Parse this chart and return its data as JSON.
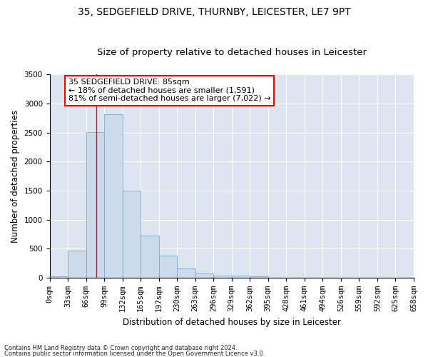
{
  "title1": "35, SEDGEFIELD DRIVE, THURNBY, LEICESTER, LE7 9PT",
  "title2": "Size of property relative to detached houses in Leicester",
  "xlabel": "Distribution of detached houses by size in Leicester",
  "ylabel": "Number of detached properties",
  "bar_color": "#ccdaeb",
  "bar_edge_color": "#7aaac8",
  "background_color": "#dde6f0",
  "bin_labels": [
    "0sqm",
    "33sqm",
    "66sqm",
    "99sqm",
    "132sqm",
    "165sqm",
    "197sqm",
    "230sqm",
    "263sqm",
    "296sqm",
    "329sqm",
    "362sqm",
    "395sqm",
    "428sqm",
    "461sqm",
    "494sqm",
    "526sqm",
    "559sqm",
    "592sqm",
    "625sqm",
    "658sqm"
  ],
  "bar_values": [
    20,
    470,
    2510,
    2820,
    1500,
    730,
    375,
    155,
    70,
    40,
    35,
    30,
    5,
    0,
    0,
    0,
    0,
    0,
    0,
    0
  ],
  "vline_x": 85,
  "annotation_text": "35 SEDGEFIELD DRIVE: 85sqm\n← 18% of detached houses are smaller (1,591)\n81% of semi-detached houses are larger (7,022) →",
  "annotation_box_color": "white",
  "annotation_box_edge_color": "red",
  "vline_color": "red",
  "ylim": [
    0,
    3500
  ],
  "bin_width": 33,
  "n_bars": 20,
  "footnote1": "Contains HM Land Registry data © Crown copyright and database right 2024.",
  "footnote2": "Contains public sector information licensed under the Open Government Licence v3.0.",
  "title1_fontsize": 10,
  "title2_fontsize": 9.5,
  "axis_label_fontsize": 8.5,
  "tick_fontsize": 7.5,
  "annotation_fontsize": 8
}
